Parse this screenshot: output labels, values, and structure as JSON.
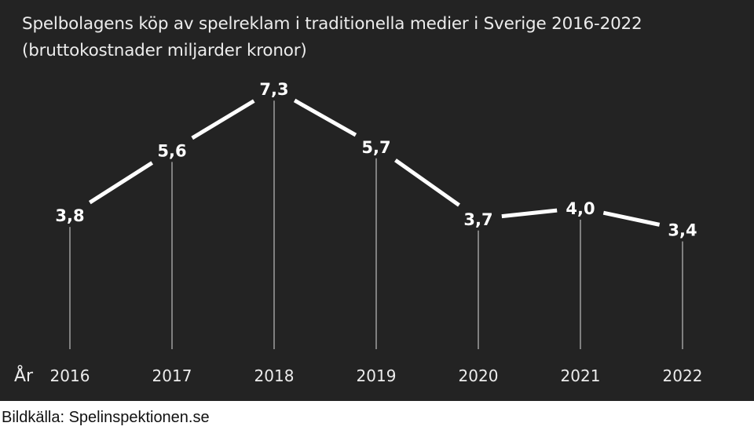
{
  "chart_data": {
    "type": "line",
    "title": "Spelbolagens köp av spelreklam i traditionella medier i Sverige 2016-2022",
    "subtitle": "(bruttokostnader miljarder kronor)",
    "xlabel": "År",
    "ylabel": "",
    "categories": [
      "2016",
      "2017",
      "2018",
      "2019",
      "2020",
      "2021",
      "2022"
    ],
    "values": [
      3.8,
      5.6,
      7.3,
      5.7,
      3.7,
      4.0,
      3.4
    ],
    "data_labels": [
      "3,8",
      "5,6",
      "7,3",
      "5,7",
      "3,7",
      "4,0",
      "3,4"
    ],
    "grid": false,
    "legend": "none",
    "colors": {
      "background": "#232323",
      "line": "#ffffff",
      "text": "#ececec"
    }
  },
  "caption": "Bildkälla: Spelinspektionen.se"
}
